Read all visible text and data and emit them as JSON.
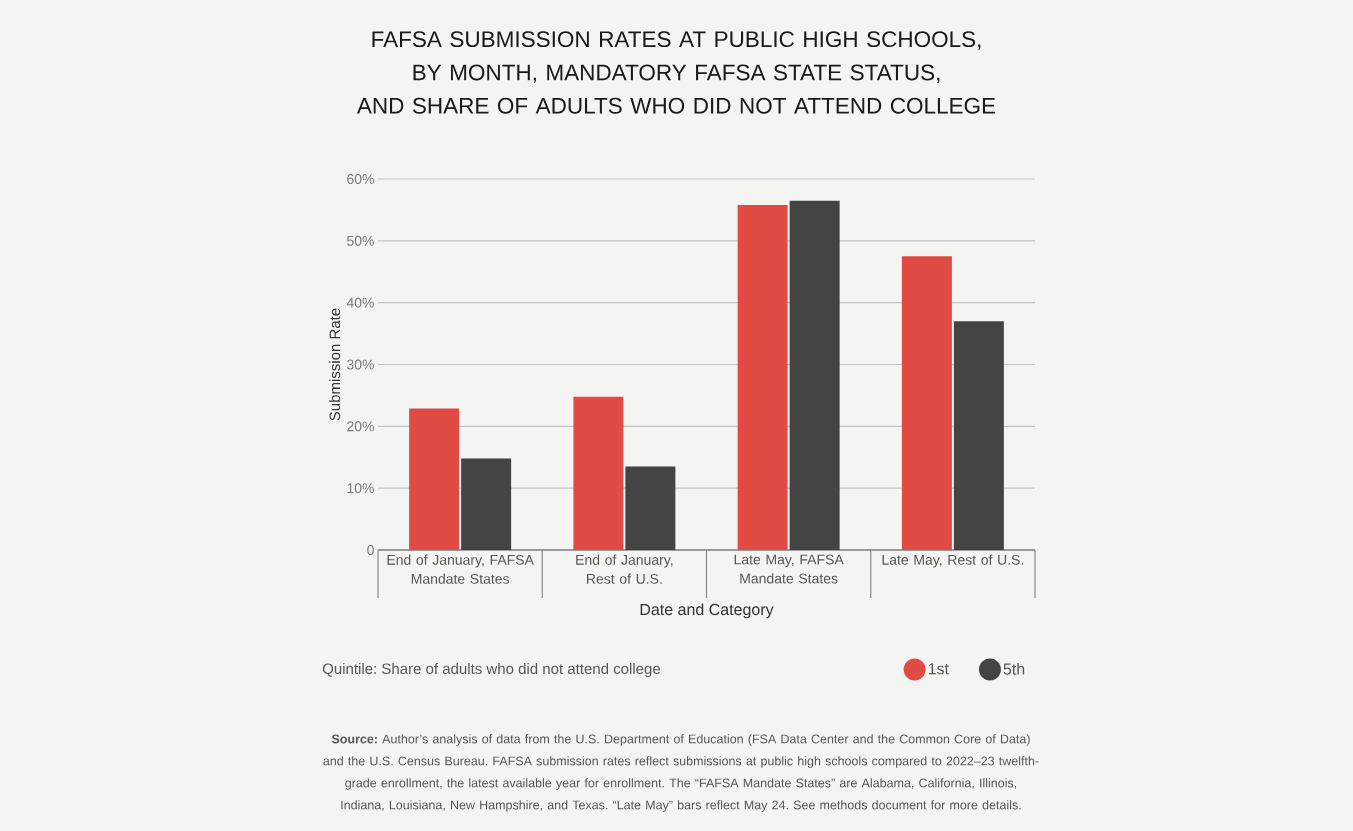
{
  "chart_data": {
    "type": "bar",
    "title": "FAFSA SUBMISSION RATES AT PUBLIC HIGH SCHOOLS, BY MONTH, MANDATORY FAFSA STATE STATUS, AND  SHARE OF ADULTS WHO DID NOT ATTEND COLLEGE",
    "xlabel": "Date and Category",
    "ylabel": "Submission Rate",
    "legend_title": "Quintile: Share of adults who did not attend college",
    "categories": [
      "End of January, FAFSA Mandate States",
      "End of January, Rest of U.S.",
      "Late May, FAFSA Mandate States",
      "Late May, Rest of U.S."
    ],
    "series": [
      {
        "name": "1st",
        "color": "#e04c43",
        "values": [
          22.9,
          24.8,
          55.8,
          47.5
        ]
      },
      {
        "name": "5th",
        "color": "#444444",
        "values": [
          14.8,
          13.5,
          56.5,
          37.0
        ]
      }
    ],
    "ylim": [
      0,
      60
    ],
    "yticks": [
      0,
      {
        "value": 10,
        "label": "10%"
      },
      {
        "value": 20,
        "label": "20%"
      },
      {
        "value": 30,
        "label": "30%"
      },
      {
        "value": 40,
        "label": "40%"
      },
      {
        "value": 50,
        "label": "50%"
      },
      {
        "value": 60,
        "label": "60%"
      }
    ],
    "grid": "y",
    "legend": "bottom",
    "annotations": [
      "**Source:** Author’s analysis of data from the U.S. Department of Education (FSA Data Center and the Common Core of Data) and the U.S. Census Bureau. FAFSA submission rates reflect submissions at public high schools compared to 2022–23 twelfth-grade enrollment, the latest available year for enrollment. The “FAFSA Mandate States” are Alabama, California, Illinois, Indiana, Louisiana, New Hampshire, and Texas. “Late May” bars reflect May 24. See methods document for more details."
    ]
  }
}
